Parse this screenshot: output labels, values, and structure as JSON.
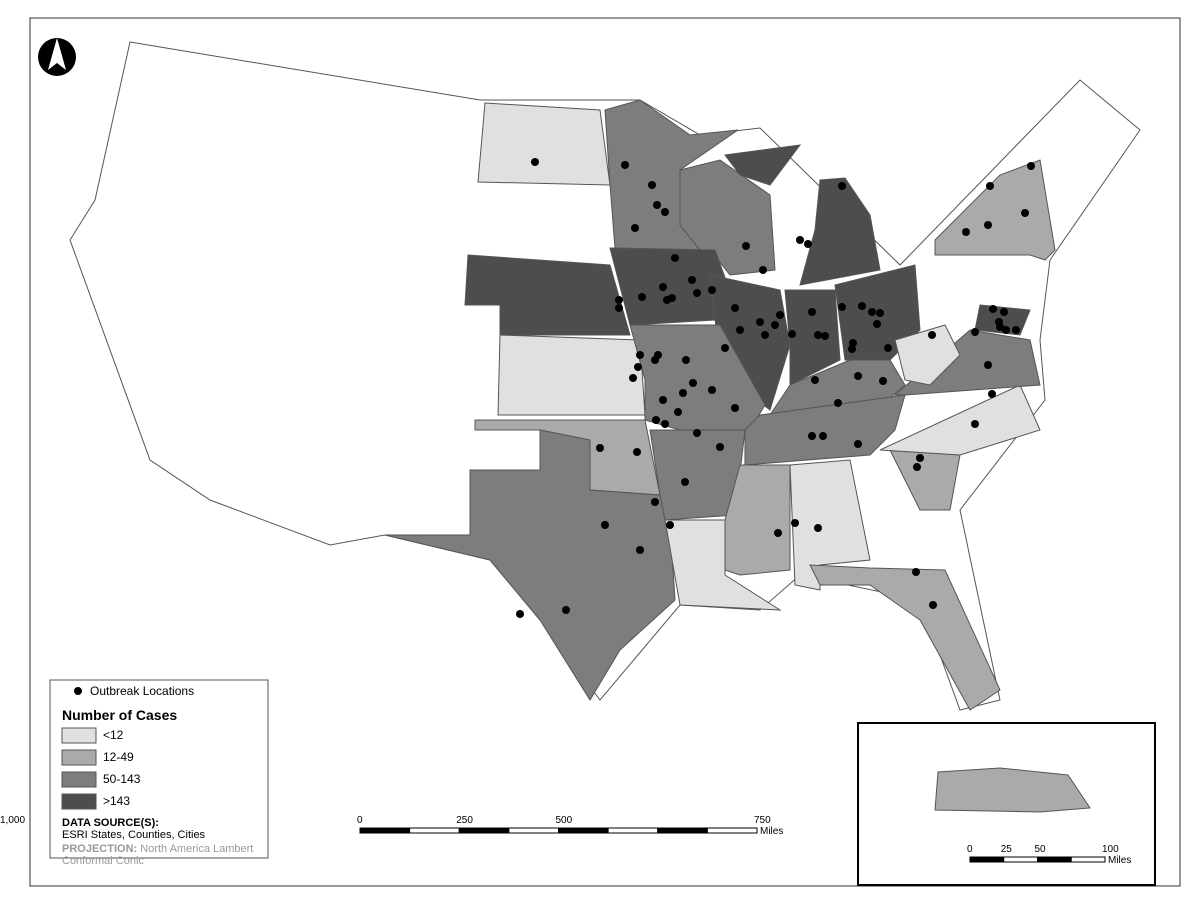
{
  "legend": {
    "marker_label": "Outbreak Locations",
    "title": "Number of Cases",
    "classes": [
      "<12",
      "12-49",
      "50-143",
      ">143"
    ]
  },
  "sources": {
    "heading": "DATA SOURCE(S):",
    "text": "ESRI States, Counties, Cities",
    "projection_heading": "PROJECTION:",
    "projection_text": "North America Lambert Conformal Conic"
  },
  "scale_bar": {
    "ticks": [
      "0",
      "250",
      "500",
      "750",
      "1,000"
    ],
    "unit": "Miles"
  },
  "inset_scale_bar": {
    "ticks": [
      "0",
      "25",
      "50",
      "100"
    ],
    "unit": "Miles"
  }
}
